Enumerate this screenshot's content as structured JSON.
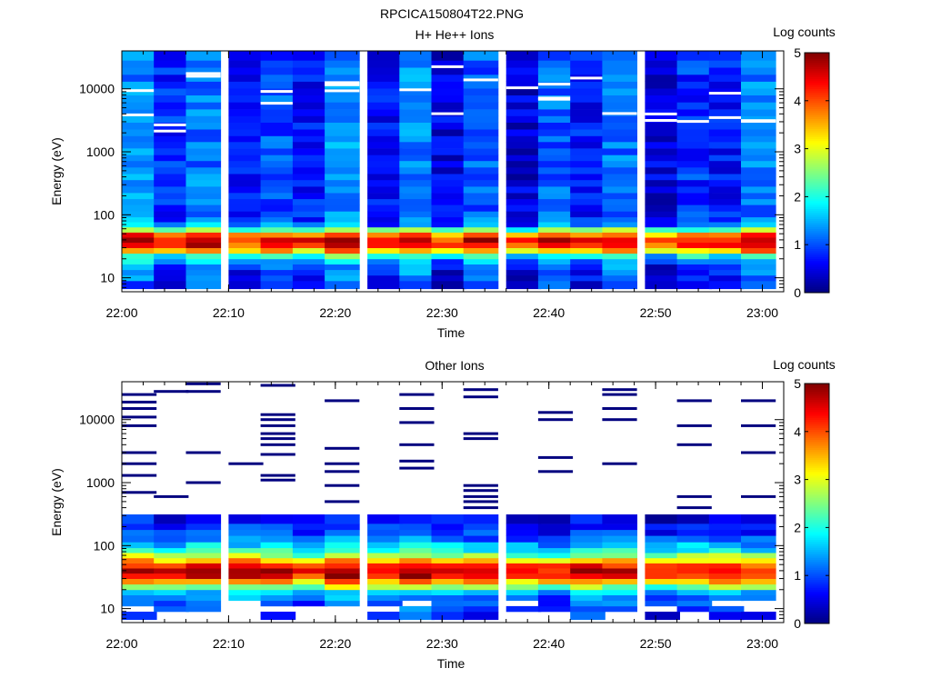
{
  "figure_title": "RPCICA150804T22.PNG",
  "colormap": [
    "#00007f",
    "#0000ff",
    "#0080ff",
    "#00ffff",
    "#80ff80",
    "#ffff00",
    "#ff8000",
    "#ff0000",
    "#7f0000"
  ],
  "chart_data": [
    {
      "type": "heatmap",
      "title": "H+ He++ Ions",
      "xlabel": "Time",
      "ylabel": "Energy (eV)",
      "x_ticks": [
        "22:00",
        "22:10",
        "22:20",
        "22:30",
        "22:40",
        "22:50",
        "23:00"
      ],
      "y_ticks": [
        "10",
        "100",
        "1000",
        "10000"
      ],
      "yscale": "log",
      "xlim": [
        "22:00",
        "23:02"
      ],
      "ylim": [
        6,
        40000
      ],
      "colorbar": {
        "label": "Log counts",
        "ticks": [
          "0",
          "1",
          "2",
          "3",
          "4",
          "5"
        ],
        "range": [
          0,
          5
        ]
      },
      "time_columns": [
        "22:00",
        "22:03",
        "22:06",
        "22:10",
        "22:13",
        "22:16",
        "22:19",
        "22:23",
        "22:26",
        "22:29",
        "22:32",
        "22:36",
        "22:39",
        "22:42",
        "22:45",
        "22:49",
        "22:52",
        "22:55",
        "22:58"
      ],
      "energy_bins_ev": [
        8,
        10,
        12,
        15,
        18,
        22,
        27,
        33,
        40,
        48,
        58,
        70,
        85,
        100,
        130,
        160,
        200,
        250,
        320,
        400,
        500,
        650,
        800,
        1000,
        1300,
        1600,
        2000,
        2600,
        3300,
        4200,
        5400,
        7000,
        9000,
        11500,
        15000,
        19000,
        25000,
        32000
      ],
      "profile_log_counts": [
        0.7,
        0.8,
        0.9,
        1.0,
        1.4,
        2.0,
        3.4,
        4.3,
        4.5,
        3.8,
        2.4,
        1.2,
        1.0,
        0.95,
        0.9,
        0.9,
        0.9,
        0.9,
        0.9,
        0.9,
        0.9,
        0.9,
        0.9,
        0.9,
        0.9,
        0.9,
        0.9,
        0.9,
        0.9,
        0.9,
        0.9,
        0.9,
        0.9,
        0.9,
        0.9,
        0.9,
        0.9,
        0.9
      ],
      "column_offsets": [
        0.4,
        -0.1,
        0.3,
        -0.3,
        0.1,
        -0.2,
        0.45,
        -0.25,
        0.4,
        -0.4,
        0.2,
        -0.45,
        0.2,
        -0.2,
        0.25,
        -0.45,
        -0.05,
        -0.2,
        0.3
      ]
    },
    {
      "type": "heatmap",
      "title": "Other Ions",
      "xlabel": "Time",
      "ylabel": "Energy (eV)",
      "x_ticks": [
        "22:00",
        "22:10",
        "22:20",
        "22:30",
        "22:40",
        "22:50",
        "23:00"
      ],
      "y_ticks": [
        "10",
        "100",
        "1000",
        "10000"
      ],
      "yscale": "log",
      "xlim": [
        "22:00",
        "23:02"
      ],
      "ylim": [
        6,
        40000
      ],
      "colorbar": {
        "label": "Log counts",
        "ticks": [
          "0",
          "1",
          "2",
          "3",
          "4",
          "5"
        ],
        "range": [
          0,
          5
        ]
      },
      "time_columns": [
        "22:00",
        "22:03",
        "22:06",
        "22:10",
        "22:13",
        "22:16",
        "22:19",
        "22:23",
        "22:26",
        "22:29",
        "22:32",
        "22:36",
        "22:39",
        "22:42",
        "22:45",
        "22:49",
        "22:52",
        "22:55",
        "22:58"
      ],
      "energy_bins_ev": [
        8,
        10,
        12,
        15,
        18,
        22,
        27,
        33,
        40,
        48,
        58,
        70,
        85,
        100,
        130,
        160,
        200,
        250
      ],
      "profile_log_counts": [
        0.9,
        1.0,
        1.1,
        1.2,
        1.6,
        2.6,
        3.6,
        4.4,
        4.6,
        4.2,
        3.4,
        2.6,
        2.0,
        1.6,
        1.2,
        1.0,
        0.8,
        0.6
      ],
      "column_offsets": [
        0.2,
        -0.2,
        0.1,
        0.15,
        0.0,
        -0.3,
        0.25,
        0.0,
        0.3,
        0.1,
        -0.1,
        -0.2,
        -0.3,
        0.1,
        0.0,
        -0.3,
        -0.1,
        0.0,
        -0.2
      ],
      "sparse_lines_ev": [
        [
          700,
          1300,
          2000,
          3000,
          8000,
          11000,
          15000,
          19000,
          25000
        ],
        [
          600,
          28000
        ],
        [
          1000,
          3000,
          28000,
          37000
        ],
        [
          2000
        ],
        [
          1100,
          1300,
          2800,
          4000,
          5000,
          6000,
          8000,
          10000,
          12000,
          35000
        ],
        [],
        [
          500,
          900,
          1500,
          2000,
          3500,
          20000
        ],
        [],
        [
          1700,
          2200,
          4000,
          9000,
          15000,
          25000
        ],
        [],
        [
          400,
          500,
          600,
          750,
          900,
          5000,
          6000,
          23000,
          30000
        ],
        [],
        [
          1500,
          2500,
          10000,
          13000
        ],
        [],
        [
          2000,
          10000,
          15000,
          25000,
          30000
        ],
        [],
        [
          400,
          600,
          4000,
          8000,
          20000
        ],
        [],
        [
          600,
          3000,
          8000,
          20000
        ]
      ]
    }
  ]
}
